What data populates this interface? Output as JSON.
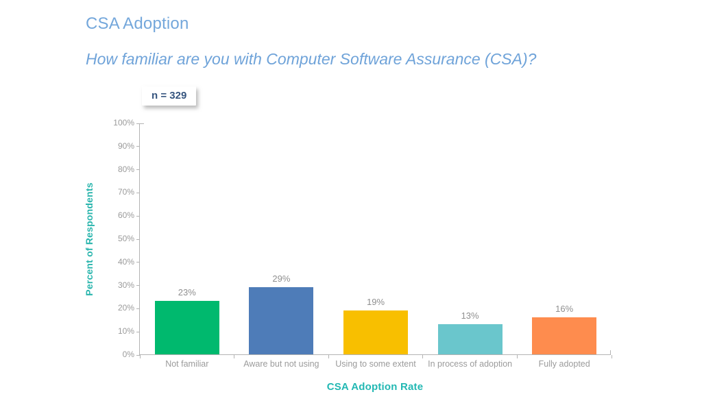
{
  "header": {
    "title": "CSA Adoption",
    "subtitle": "How familiar are you with Computer Software Assurance (CSA)?",
    "title_color": "#74a7db"
  },
  "sample_badge": {
    "label": "n = 329"
  },
  "chart_data": {
    "type": "bar",
    "title": "CSA Adoption",
    "subtitle": "How familiar are you with Computer Software Assurance (CSA)?",
    "sample_size_label": "n = 329",
    "categories": [
      "Not familiar",
      "Aware but not using",
      "Using to some extent",
      "In process of adoption",
      "Fully adopted"
    ],
    "values": [
      23,
      29,
      19,
      13,
      16
    ],
    "value_labels": [
      "23%",
      "29%",
      "19%",
      "13%",
      "16%"
    ],
    "bar_colors": [
      "#00b96e",
      "#4e7cb8",
      "#f8bf00",
      "#6ac6cc",
      "#fe8c4e"
    ],
    "xlabel": "CSA Adoption Rate",
    "ylabel": "Percent of Respondents",
    "ylim": [
      0,
      100
    ],
    "y_ticks": [
      "0%",
      "10%",
      "20%",
      "30%",
      "40%",
      "50%",
      "60%",
      "70%",
      "80%",
      "90%",
      "100%"
    ],
    "grid": false,
    "legend": "none",
    "colors": {
      "axis_line": "#b3b3b3",
      "y_tick_label": "#9a9a9a",
      "data_label": "#8f8f8f",
      "category_label": "#9b9b9b",
      "axis_title": "#2ab5ad",
      "title_blue": "#74a7db",
      "badge_text": "#35547e"
    }
  }
}
